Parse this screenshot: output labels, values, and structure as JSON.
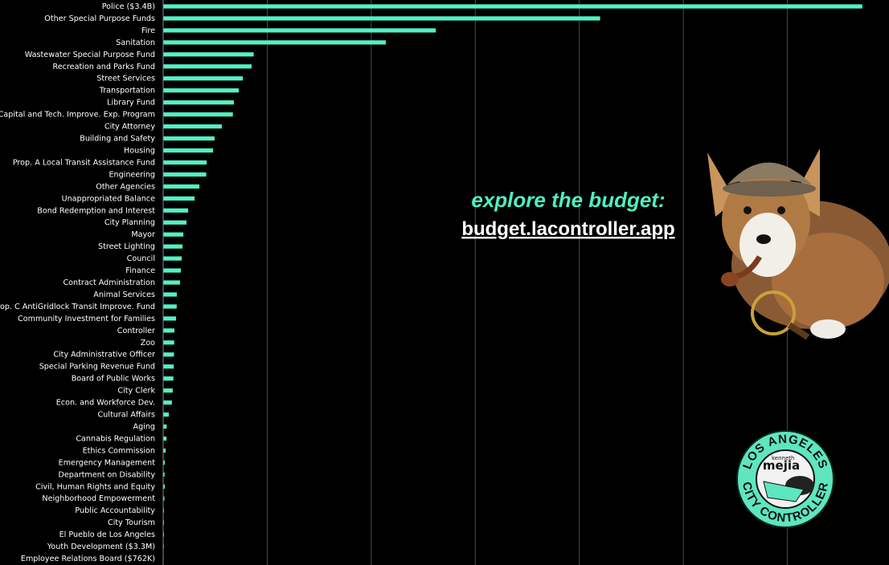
{
  "chart_data": {
    "type": "hbar",
    "categories": [
      "Police ($3.4B)",
      "Other Special Purpose Funds",
      "Fire",
      "Sanitation",
      "Wastewater Special Purpose Fund",
      "Recreation and Parks Fund",
      "Street Services",
      "Transportation",
      "Library Fund",
      "Capital and Tech. Improve. Exp. Program",
      "City Attorney",
      "Building and Safety",
      "Housing",
      "Prop. A Local Transit Assistance Fund",
      "Engineering",
      "Other Agencies",
      "Unappropriated Balance",
      "Bond Redemption and Interest",
      "City Planning",
      "Mayor",
      "Street Lighting",
      "Council",
      "Finance",
      "Contract Administration",
      "Animal Services",
      "Prop. C AntiGridlock Transit Improve. Fund",
      "Community Investment for Families",
      "Controller",
      "Zoo",
      "City Administrative Officer",
      "Special Parking Revenue Fund",
      "Board of Public Works",
      "City Clerk",
      "Econ. and Workforce Dev.",
      "Cultural Affairs",
      "Aging",
      "Cannabis Regulation",
      "Ethics Commission",
      "Emergency Management",
      "Department on Disability",
      "Civil, Human Rights and Equity",
      "Neighborhood Empowerment",
      "Public Accountability",
      "City Tourism",
      "El Pueblo de Los Angeles",
      "Youth Development ($3.3M)",
      "Employee Relations Board ($762K)"
    ],
    "values": [
      3.36,
      2.1,
      1.31,
      1.07,
      0.435,
      0.425,
      0.383,
      0.363,
      0.34,
      0.335,
      0.282,
      0.247,
      0.24,
      0.209,
      0.207,
      0.174,
      0.151,
      0.12,
      0.112,
      0.097,
      0.093,
      0.089,
      0.085,
      0.081,
      0.066,
      0.065,
      0.062,
      0.054,
      0.053,
      0.052,
      0.051,
      0.049,
      0.046,
      0.042,
      0.027,
      0.017,
      0.016,
      0.012,
      0.008,
      0.007,
      0.008,
      0.006,
      0.004,
      0.004,
      0.004,
      0.0033,
      0.000762
    ],
    "color": "#52f2c4",
    "xlim": [
      0,
      3.5
    ],
    "xticks": [
      0,
      0.5,
      1,
      1.5,
      2,
      2.5,
      3,
      3.5
    ],
    "grid": true,
    "annotations": [
      "explore the budget:",
      "budget.lacontroller.app"
    ]
  },
  "logo": {
    "top": "LOS ANGELES",
    "name_small": "kenneth",
    "name": "mejia",
    "bottom": "CITY CONTROLLER"
  }
}
